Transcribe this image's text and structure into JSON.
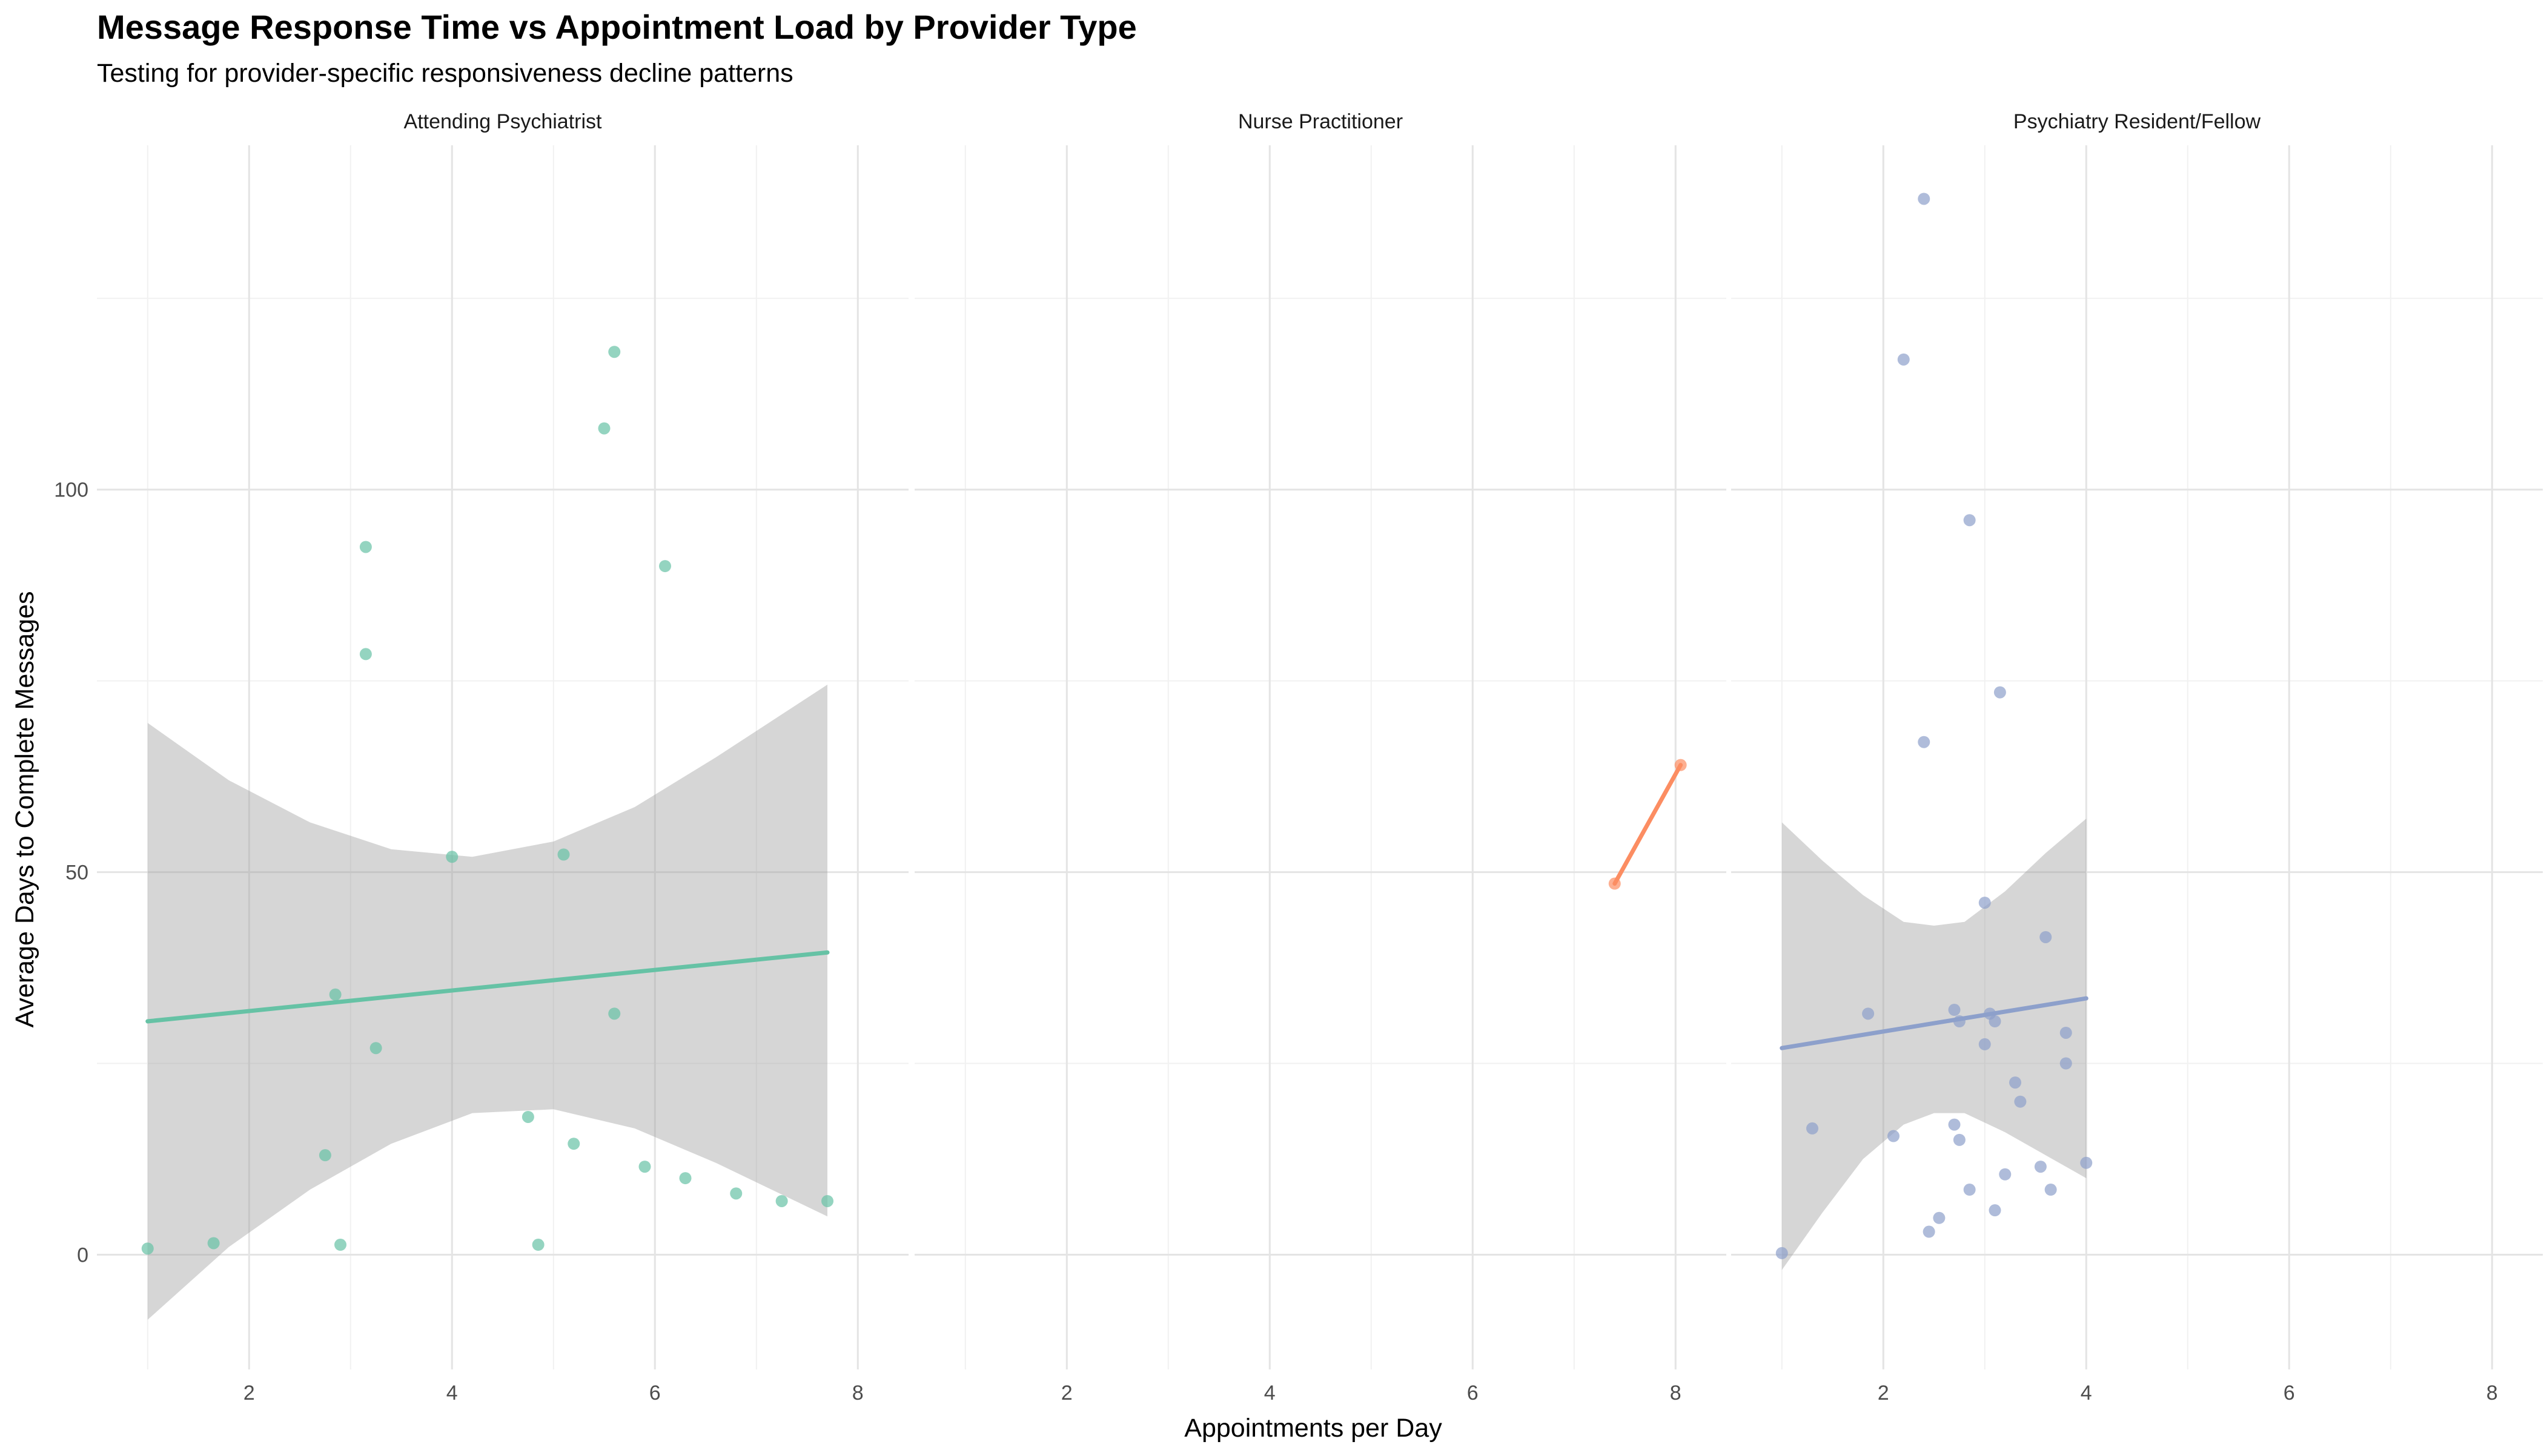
{
  "chart_data": {
    "type": "scatter",
    "title": "Message Response Time vs Appointment Load by Provider Type",
    "subtitle": "Testing for provider-specific responsiveness decline patterns",
    "xlabel": "Appointments per Day",
    "ylabel": "Average Days to Complete Messages",
    "xlim": [
      0.5,
      8.5
    ],
    "ylim": [
      -15,
      145
    ],
    "x_ticks": [
      2,
      4,
      6,
      8
    ],
    "y_ticks": [
      0,
      50,
      100
    ],
    "grid": true,
    "legend": "none",
    "panels": [
      {
        "label": "Attending Psychiatrist",
        "color": "#66c2a5",
        "points": [
          {
            "x": 1.0,
            "y": 0.8
          },
          {
            "x": 1.65,
            "y": 1.5
          },
          {
            "x": 2.75,
            "y": 13.0
          },
          {
            "x": 2.85,
            "y": 34.0
          },
          {
            "x": 2.9,
            "y": 1.3
          },
          {
            "x": 3.15,
            "y": 92.5
          },
          {
            "x": 3.15,
            "y": 78.5
          },
          {
            "x": 3.25,
            "y": 27.0
          },
          {
            "x": 4.0,
            "y": 52.0
          },
          {
            "x": 4.75,
            "y": 18.0
          },
          {
            "x": 4.85,
            "y": 1.3
          },
          {
            "x": 5.1,
            "y": 52.3
          },
          {
            "x": 5.2,
            "y": 14.5
          },
          {
            "x": 5.5,
            "y": 108.0
          },
          {
            "x": 5.6,
            "y": 118.0
          },
          {
            "x": 5.6,
            "y": 31.5
          },
          {
            "x": 5.9,
            "y": 11.5
          },
          {
            "x": 6.1,
            "y": 90.0
          },
          {
            "x": 6.3,
            "y": 10.0
          },
          {
            "x": 6.8,
            "y": 8.0
          },
          {
            "x": 7.25,
            "y": 7.0
          },
          {
            "x": 7.7,
            "y": 7.0
          }
        ],
        "trend": {
          "x": [
            1.0,
            7.7
          ],
          "y": [
            30.5,
            39.5
          ]
        },
        "band": [
          {
            "x": 1.0,
            "lo": -8.5,
            "hi": 69.5
          },
          {
            "x": 1.8,
            "lo": 1.0,
            "hi": 62.0
          },
          {
            "x": 2.6,
            "lo": 8.5,
            "hi": 56.5
          },
          {
            "x": 3.4,
            "lo": 14.5,
            "hi": 53.0
          },
          {
            "x": 4.2,
            "lo": 18.5,
            "hi": 52.0
          },
          {
            "x": 5.0,
            "lo": 19.0,
            "hi": 54.0
          },
          {
            "x": 5.8,
            "lo": 16.5,
            "hi": 58.5
          },
          {
            "x": 6.6,
            "lo": 12.0,
            "hi": 65.0
          },
          {
            "x": 7.7,
            "lo": 5.0,
            "hi": 74.5
          }
        ]
      },
      {
        "label": "Nurse Practitioner",
        "color": "#fc8d62",
        "points": [
          {
            "x": 7.4,
            "y": 48.5
          },
          {
            "x": 8.05,
            "y": 64.0
          }
        ],
        "trend": {
          "x": [
            7.4,
            8.05
          ],
          "y": [
            48.5,
            64.0
          ]
        },
        "band": []
      },
      {
        "label": "Psychiatry Resident/Fellow",
        "color": "#8da0cb",
        "points": [
          {
            "x": 1.0,
            "y": 0.2
          },
          {
            "x": 1.3,
            "y": 16.5
          },
          {
            "x": 1.85,
            "y": 31.5
          },
          {
            "x": 2.1,
            "y": 15.5
          },
          {
            "x": 2.2,
            "y": 117.0
          },
          {
            "x": 2.4,
            "y": 138.0
          },
          {
            "x": 2.4,
            "y": 67.0
          },
          {
            "x": 2.45,
            "y": 3.0
          },
          {
            "x": 2.55,
            "y": 4.8
          },
          {
            "x": 2.7,
            "y": 17.0
          },
          {
            "x": 2.7,
            "y": 32.0
          },
          {
            "x": 2.75,
            "y": 15.0
          },
          {
            "x": 2.75,
            "y": 30.5
          },
          {
            "x": 2.85,
            "y": 96.0
          },
          {
            "x": 2.85,
            "y": 8.5
          },
          {
            "x": 3.0,
            "y": 46.0
          },
          {
            "x": 3.0,
            "y": 27.5
          },
          {
            "x": 3.05,
            "y": 31.5
          },
          {
            "x": 3.1,
            "y": 30.5
          },
          {
            "x": 3.1,
            "y": 5.8
          },
          {
            "x": 3.15,
            "y": 73.5
          },
          {
            "x": 3.2,
            "y": 10.5
          },
          {
            "x": 3.3,
            "y": 22.5
          },
          {
            "x": 3.35,
            "y": 20.0
          },
          {
            "x": 3.55,
            "y": 11.5
          },
          {
            "x": 3.6,
            "y": 41.5
          },
          {
            "x": 3.65,
            "y": 8.5
          },
          {
            "x": 3.8,
            "y": 29.0
          },
          {
            "x": 3.8,
            "y": 25.0
          },
          {
            "x": 4.0,
            "y": 12.0
          }
        ],
        "trend": {
          "x": [
            1.0,
            4.0
          ],
          "y": [
            27.0,
            33.5
          ]
        },
        "band": [
          {
            "x": 1.0,
            "lo": -2.0,
            "hi": 56.5
          },
          {
            "x": 1.4,
            "lo": 5.5,
            "hi": 51.5
          },
          {
            "x": 1.8,
            "lo": 12.5,
            "hi": 47.0
          },
          {
            "x": 2.2,
            "lo": 17.0,
            "hi": 43.5
          },
          {
            "x": 2.5,
            "lo": 18.5,
            "hi": 43.0
          },
          {
            "x": 2.8,
            "lo": 18.5,
            "hi": 43.5
          },
          {
            "x": 3.2,
            "lo": 16.0,
            "hi": 47.5
          },
          {
            "x": 3.6,
            "lo": 13.0,
            "hi": 52.5
          },
          {
            "x": 4.0,
            "lo": 10.0,
            "hi": 57.0
          }
        ]
      }
    ]
  }
}
